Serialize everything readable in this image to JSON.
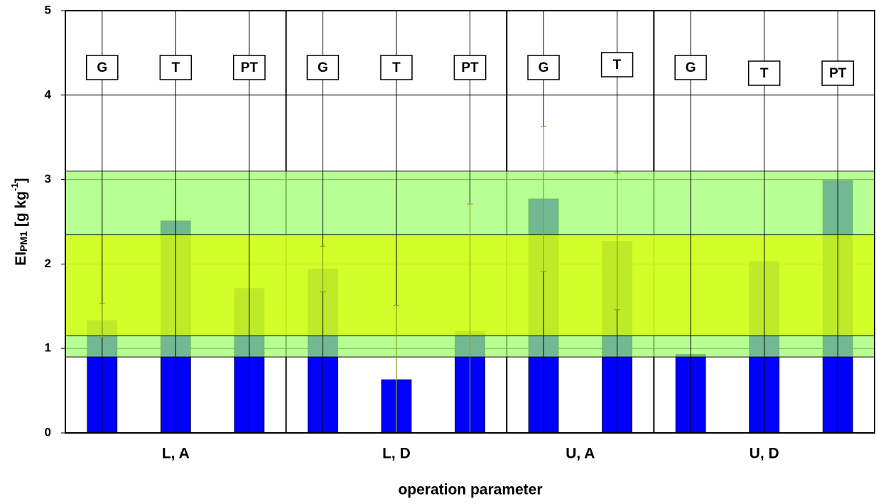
{
  "chart_data": {
    "type": "bar",
    "ylabel": {
      "main": "EI",
      "sub": "PM1",
      "unit": "[g kg",
      "sup": "-1",
      "close": "]"
    },
    "xlabel": "operation parameter",
    "ylim": [
      0,
      5
    ],
    "yticks": [
      0,
      1,
      2,
      3,
      4,
      5
    ],
    "grid": true,
    "color": "#0000ff",
    "error_color": "#8aa81c",
    "groups": [
      {
        "name": "L, A",
        "categories": [
          "G",
          "T",
          "PT"
        ],
        "values": [
          1.33,
          2.51,
          1.71
        ],
        "errors": [
          0.2,
          null,
          null
        ]
      },
      {
        "name": "L, D",
        "categories": [
          "G",
          "T",
          "PT"
        ],
        "values": [
          1.94,
          0.63,
          1.2
        ],
        "errors": [
          0.27,
          0.88,
          1.51
        ]
      },
      {
        "name": "U, A",
        "categories": [
          "G",
          "T"
        ],
        "values": [
          2.77,
          2.27
        ],
        "errors": [
          0.86,
          0.81
        ]
      },
      {
        "name": "U, D",
        "categories": [
          "G",
          "T",
          "PT"
        ],
        "values": [
          0.93,
          2.03,
          2.99
        ],
        "errors": [
          null,
          null,
          null
        ]
      }
    ],
    "bands": [
      {
        "range": [
          0.9,
          3.1
        ],
        "color": "#9dff6a"
      },
      {
        "range": [
          1.15,
          2.35
        ],
        "color": "#ddff00"
      }
    ]
  }
}
